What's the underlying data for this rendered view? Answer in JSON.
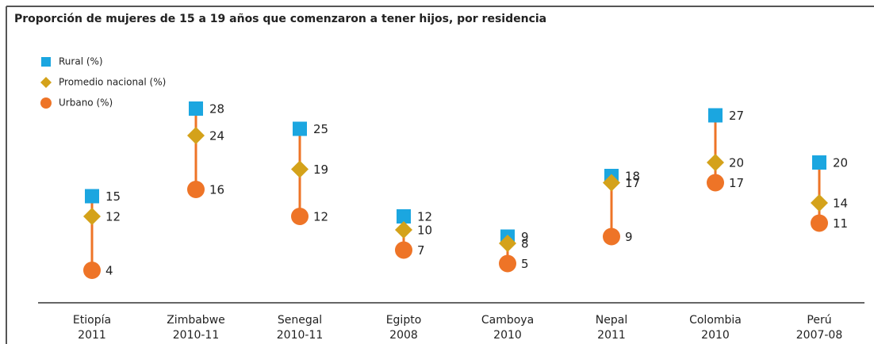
{
  "chart_data": {
    "type": "dot",
    "title": "Proporción de mujeres de 15 a 19 años que comenzaron a tener hijos, por residencia",
    "categories": [
      [
        "Etiopía",
        "2011"
      ],
      [
        "Zimbabwe",
        "2010-11"
      ],
      [
        "Senegal",
        "2010-11"
      ],
      [
        "Egipto",
        "2008"
      ],
      [
        "Camboya",
        "2010"
      ],
      [
        "Nepal",
        "2011"
      ],
      [
        "Colombia",
        "2010"
      ],
      [
        "Perú",
        "2007-08"
      ]
    ],
    "series": [
      {
        "name": "Rural (%)",
        "color": "#1ba6e0",
        "marker": "square",
        "values": [
          15,
          28,
          25,
          12,
          9,
          18,
          27,
          20
        ]
      },
      {
        "name": "Promedio nacional (%)",
        "color": "#d4a21a",
        "marker": "diamond",
        "values": [
          12,
          24,
          19,
          10,
          8,
          17,
          20,
          14
        ]
      },
      {
        "name": "Urbano (%)",
        "color": "#ee7427",
        "marker": "circle",
        "values": [
          4,
          16,
          12,
          7,
          5,
          9,
          17,
          11
        ]
      }
    ]
  }
}
